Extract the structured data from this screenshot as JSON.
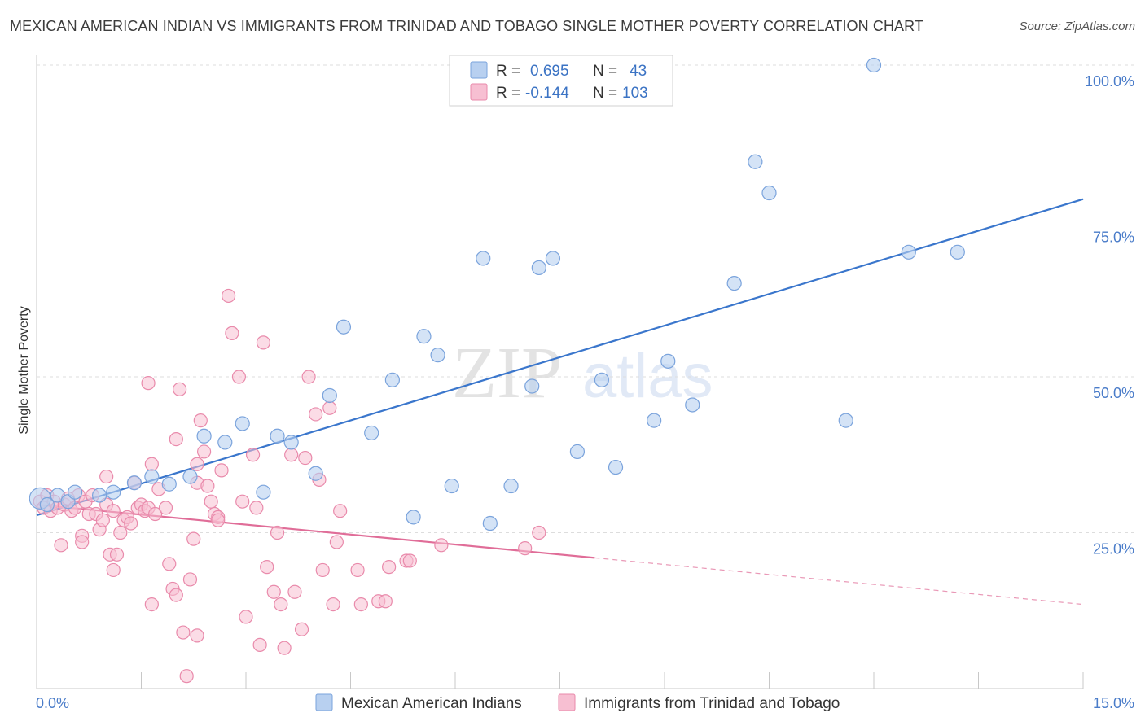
{
  "title": "MEXICAN AMERICAN INDIAN VS IMMIGRANTS FROM TRINIDAD AND TOBAGO SINGLE MOTHER POVERTY CORRELATION CHART",
  "source": "Source: ZipAtlas.com",
  "watermark": {
    "zip": "ZIP",
    "atlas": "atlas"
  },
  "legend": {
    "r_label": "R =",
    "n_label": "N =",
    "series1": {
      "r": "0.695",
      "n": "43"
    },
    "series2": {
      "r": "-0.144",
      "n": "103"
    }
  },
  "colors": {
    "blue_fill": "#b8d0f0",
    "blue_stroke": "#7aa3dc",
    "blue_line": "#3a76cc",
    "pink_fill": "#f7bfd2",
    "pink_stroke": "#e98aab",
    "pink_line": "#e06d98",
    "grid": "#dddddd",
    "tick_text": "#4a7cc9"
  },
  "chart_data": {
    "type": "scatter",
    "title": "MEXICAN AMERICAN INDIAN VS IMMIGRANTS FROM TRINIDAD AND TOBAGO SINGLE MOTHER POVERTY CORRELATION CHART",
    "xlabel": "",
    "ylabel": "Single Mother Poverty",
    "xlim": [
      0,
      15
    ],
    "ylim": [
      0,
      100
    ],
    "x_tick_labels": [
      "0.0%",
      "15.0%"
    ],
    "y_ticks": [
      25,
      50,
      75,
      100
    ],
    "y_tick_labels": [
      "25.0%",
      "50.0%",
      "75.0%",
      "100.0%"
    ],
    "grid": true,
    "legend_position": "top-center",
    "series": [
      {
        "name": "Mexican American Indians",
        "color": "#7aa3dc",
        "r": 0.695,
        "n": 43,
        "trend": {
          "x": [
            0,
            15
          ],
          "y": [
            27.8,
            78.5
          ],
          "dashed_from": null
        },
        "points": [
          [
            0.05,
            30.5
          ],
          [
            0.15,
            29.5
          ],
          [
            0.3,
            31
          ],
          [
            0.45,
            30
          ],
          [
            0.55,
            31.5
          ],
          [
            0.9,
            31
          ],
          [
            1.1,
            31.5
          ],
          [
            1.4,
            33
          ],
          [
            1.65,
            34
          ],
          [
            1.9,
            32.8
          ],
          [
            2.2,
            34
          ],
          [
            2.4,
            40.5
          ],
          [
            2.7,
            39.5
          ],
          [
            2.95,
            42.5
          ],
          [
            3.25,
            31.5
          ],
          [
            3.45,
            40.5
          ],
          [
            3.65,
            39.5
          ],
          [
            4.0,
            34.5
          ],
          [
            4.2,
            47
          ],
          [
            4.4,
            58
          ],
          [
            4.8,
            41
          ],
          [
            5.1,
            49.5
          ],
          [
            5.4,
            27.5
          ],
          [
            5.55,
            56.5
          ],
          [
            5.75,
            53.5
          ],
          [
            5.95,
            32.5
          ],
          [
            6.4,
            69
          ],
          [
            6.5,
            26.5
          ],
          [
            6.8,
            32.5
          ],
          [
            7.1,
            48.5
          ],
          [
            7.2,
            67.5
          ],
          [
            7.4,
            69
          ],
          [
            7.75,
            38
          ],
          [
            8.1,
            49.5
          ],
          [
            8.3,
            35.5
          ],
          [
            8.85,
            43
          ],
          [
            9.05,
            52.5
          ],
          [
            9.4,
            45.5
          ],
          [
            10.0,
            65
          ],
          [
            10.3,
            84.5
          ],
          [
            10.5,
            79.5
          ],
          [
            11.6,
            43
          ],
          [
            12.0,
            100
          ],
          [
            12.5,
            70
          ],
          [
            13.2,
            70
          ]
        ]
      },
      {
        "name": "Immigrants from Trinidad and Tobago",
        "color": "#e98aab",
        "r": -0.144,
        "n": 103,
        "trend": {
          "x": [
            0,
            15
          ],
          "y": [
            29.5,
            13.5
          ],
          "solid_until_x": 8.0
        },
        "points": [
          [
            0.05,
            30
          ],
          [
            0.1,
            29
          ],
          [
            0.15,
            31
          ],
          [
            0.2,
            28.5
          ],
          [
            0.25,
            30
          ],
          [
            0.3,
            29
          ],
          [
            0.35,
            23
          ],
          [
            0.4,
            29.5
          ],
          [
            0.45,
            30.5
          ],
          [
            0.5,
            28.5
          ],
          [
            0.55,
            29
          ],
          [
            0.6,
            31
          ],
          [
            0.65,
            24.5
          ],
          [
            0.65,
            23.5
          ],
          [
            0.7,
            30
          ],
          [
            0.75,
            28
          ],
          [
            0.8,
            31
          ],
          [
            0.85,
            28
          ],
          [
            0.9,
            25.5
          ],
          [
            0.95,
            27
          ],
          [
            1.0,
            29.5
          ],
          [
            1.0,
            34
          ],
          [
            1.05,
            21.5
          ],
          [
            1.1,
            19
          ],
          [
            1.1,
            28.5
          ],
          [
            1.15,
            21.5
          ],
          [
            1.2,
            25
          ],
          [
            1.25,
            27
          ],
          [
            1.3,
            27.5
          ],
          [
            1.35,
            26.5
          ],
          [
            1.4,
            33
          ],
          [
            1.45,
            29
          ],
          [
            1.5,
            29.5
          ],
          [
            1.55,
            28.5
          ],
          [
            1.6,
            29
          ],
          [
            1.6,
            49
          ],
          [
            1.65,
            36
          ],
          [
            1.65,
            13.5
          ],
          [
            1.7,
            28
          ],
          [
            1.75,
            32
          ],
          [
            1.85,
            29
          ],
          [
            1.9,
            20
          ],
          [
            1.95,
            16
          ],
          [
            2.0,
            40
          ],
          [
            2.0,
            15
          ],
          [
            2.05,
            48
          ],
          [
            2.1,
            9
          ],
          [
            2.15,
            2
          ],
          [
            2.2,
            17.5
          ],
          [
            2.25,
            24
          ],
          [
            2.3,
            8.5
          ],
          [
            2.3,
            33
          ],
          [
            2.3,
            36
          ],
          [
            2.35,
            43
          ],
          [
            2.4,
            38
          ],
          [
            2.45,
            32.5
          ],
          [
            2.5,
            30
          ],
          [
            2.55,
            28
          ],
          [
            2.6,
            27.5
          ],
          [
            2.6,
            27
          ],
          [
            2.65,
            35
          ],
          [
            2.75,
            63
          ],
          [
            2.8,
            57
          ],
          [
            2.9,
            50
          ],
          [
            2.95,
            30
          ],
          [
            3.0,
            11.5
          ],
          [
            3.1,
            37.5
          ],
          [
            3.15,
            29
          ],
          [
            3.2,
            7
          ],
          [
            3.25,
            55.5
          ],
          [
            3.3,
            19.5
          ],
          [
            3.4,
            15.5
          ],
          [
            3.45,
            25
          ],
          [
            3.5,
            13.5
          ],
          [
            3.55,
            6.5
          ],
          [
            3.65,
            37.5
          ],
          [
            3.7,
            15.5
          ],
          [
            3.8,
            9.5
          ],
          [
            3.85,
            37
          ],
          [
            3.9,
            50
          ],
          [
            4.0,
            44
          ],
          [
            4.05,
            33.5
          ],
          [
            4.1,
            19
          ],
          [
            4.2,
            45
          ],
          [
            4.25,
            13.5
          ],
          [
            4.3,
            23.5
          ],
          [
            4.35,
            28.5
          ],
          [
            4.6,
            19
          ],
          [
            4.65,
            13.5
          ],
          [
            4.9,
            14
          ],
          [
            5.0,
            14
          ],
          [
            5.05,
            19.5
          ],
          [
            5.3,
            20.5
          ],
          [
            5.35,
            20.5
          ],
          [
            5.8,
            23
          ],
          [
            7.0,
            22.5
          ],
          [
            7.2,
            25
          ]
        ]
      }
    ]
  },
  "bottom_legend": {
    "series1": "Mexican American Indians",
    "series2": "Immigrants from Trinidad and Tobago"
  }
}
